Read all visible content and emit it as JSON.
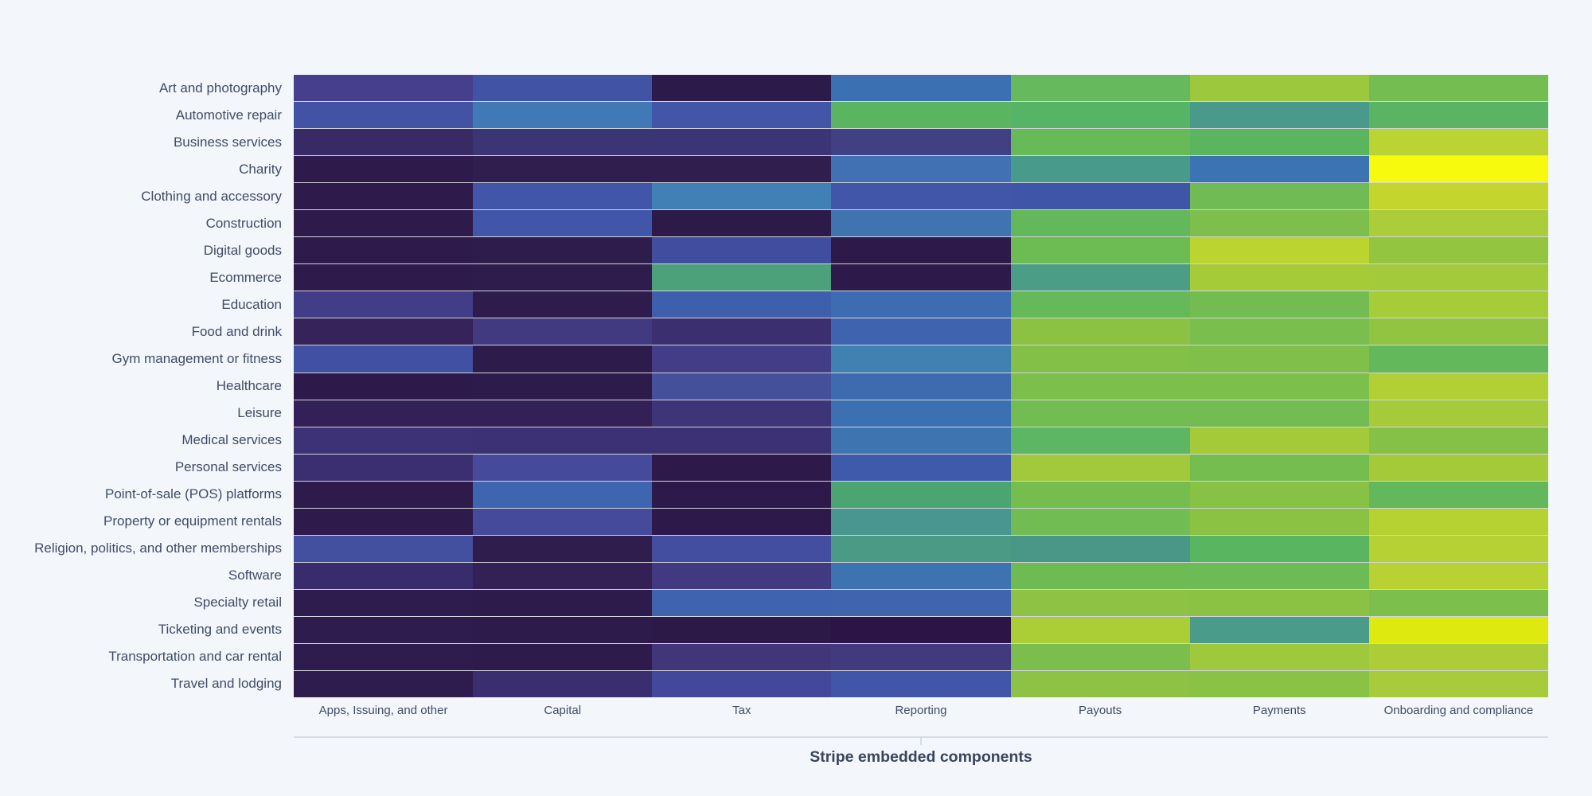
{
  "page": {
    "background": "#f3f7fb"
  },
  "colors": {
    "label_text": "#3f4c66",
    "title_text": "#3a455c",
    "axis_line": "#d7dde6",
    "row_divider": "rgba(5,5,25,0.14)"
  },
  "chart_data": {
    "type": "heatmap",
    "colormap": "viridis",
    "x_axis_title": "Stripe embedded components",
    "columns": [
      "Apps, Issuing, and other",
      "Capital",
      "Tax",
      "Reporting",
      "Payouts",
      "Payments",
      "Onboarding and compliance"
    ],
    "rows": [
      "Art and photography",
      "Automotive repair",
      "Business services",
      "Charity",
      "Clothing and accessory",
      "Construction",
      "Digital goods",
      "Ecommerce",
      "Education",
      "Food and drink",
      "Gym management or fitness",
      "Healthcare",
      "Leisure",
      "Medical services",
      "Personal services",
      "Point-of-sale (POS) platforms",
      "Property or equipment rentals",
      "Religion, politics, and other memberships",
      "Software",
      "Specialty retail",
      "Ticketing and events",
      "Transportation and car rental",
      "Travel and lodging"
    ],
    "values": [
      [
        0.19,
        0.25,
        0.03,
        0.34,
        0.66,
        0.78,
        0.7
      ],
      [
        0.24,
        0.38,
        0.26,
        0.64,
        0.64,
        0.48,
        0.63
      ],
      [
        0.09,
        0.13,
        0.13,
        0.17,
        0.67,
        0.64,
        0.84
      ],
      [
        0.03,
        0.05,
        0.05,
        0.34,
        0.48,
        0.34,
        1.0
      ],
      [
        0.03,
        0.26,
        0.39,
        0.26,
        0.25,
        0.69,
        0.87
      ],
      [
        0.03,
        0.26,
        0.02,
        0.36,
        0.65,
        0.72,
        0.8
      ],
      [
        0.03,
        0.04,
        0.22,
        0.03,
        0.69,
        0.84,
        0.75
      ],
      [
        0.03,
        0.04,
        0.55,
        0.03,
        0.52,
        0.79,
        0.78
      ],
      [
        0.17,
        0.04,
        0.29,
        0.33,
        0.66,
        0.7,
        0.79
      ],
      [
        0.07,
        0.16,
        0.11,
        0.3,
        0.75,
        0.72,
        0.75
      ],
      [
        0.23,
        0.03,
        0.17,
        0.39,
        0.73,
        0.73,
        0.65
      ],
      [
        0.03,
        0.03,
        0.22,
        0.32,
        0.72,
        0.72,
        0.81
      ],
      [
        0.06,
        0.06,
        0.14,
        0.34,
        0.7,
        0.7,
        0.79
      ],
      [
        0.13,
        0.13,
        0.13,
        0.36,
        0.65,
        0.78,
        0.74
      ],
      [
        0.12,
        0.21,
        0.02,
        0.28,
        0.78,
        0.7,
        0.78
      ],
      [
        0.03,
        0.31,
        0.02,
        0.57,
        0.7,
        0.74,
        0.65
      ],
      [
        0.03,
        0.21,
        0.02,
        0.46,
        0.7,
        0.75,
        0.82
      ],
      [
        0.23,
        0.04,
        0.23,
        0.48,
        0.47,
        0.64,
        0.82
      ],
      [
        0.1,
        0.05,
        0.17,
        0.36,
        0.69,
        0.69,
        0.82
      ],
      [
        0.04,
        0.03,
        0.3,
        0.3,
        0.75,
        0.75,
        0.72
      ],
      [
        0.04,
        0.03,
        0.02,
        0.01,
        0.79,
        0.48,
        0.93
      ],
      [
        0.04,
        0.03,
        0.14,
        0.15,
        0.72,
        0.77,
        0.8
      ],
      [
        0.04,
        0.11,
        0.2,
        0.26,
        0.75,
        0.74,
        0.78
      ]
    ],
    "cell_colors": [
      [
        "#453f8d",
        "#4053a5",
        "#2c1b4a",
        "#3b70b3",
        "#66b95c",
        "#9cc83d",
        "#74bd50"
      ],
      [
        "#4253a5",
        "#4079b5",
        "#4355a6",
        "#5bb45f",
        "#55b466",
        "#4a9a8b",
        "#5ab464"
      ],
      [
        "#382a64",
        "#3b3475",
        "#3b3475",
        "#414084",
        "#68ba58",
        "#5bb55e",
        "#bcd334"
      ],
      [
        "#2e1b4c",
        "#301e4f",
        "#301e4f",
        "#4171b2",
        "#489a8a",
        "#3b73b3",
        "#f8fa0d"
      ],
      [
        "#2e1b4c",
        "#4156a8",
        "#4080b5",
        "#4156a9",
        "#3f55a8",
        "#70bb54",
        "#c4d62e"
      ],
      [
        "#2e1b4c",
        "#4156a8",
        "#2c1a49",
        "#3f74b1",
        "#62b85a",
        "#7dbe4c",
        "#accd3a"
      ],
      [
        "#2e1b4c",
        "#2e1c4d",
        "#414d9e",
        "#2e1a4a",
        "#6cbb53",
        "#bcd42f",
        "#93c540"
      ],
      [
        "#2e1b4c",
        "#2e1c4d",
        "#4da17a",
        "#2e1a4a",
        "#4b9d85",
        "#a6cb39",
        "#a3ca3b"
      ],
      [
        "#433c86",
        "#2e1c4d",
        "#3e60ac",
        "#3e6cb2",
        "#66b958",
        "#72bc51",
        "#a7cc39"
      ],
      [
        "#352359",
        "#413a80",
        "#3b2f70",
        "#3f63ae",
        "#8cc243",
        "#7abe4d",
        "#92c441"
      ],
      [
        "#4150a2",
        "#2d1b4b",
        "#433c87",
        "#4181b2",
        "#82c048",
        "#80c04a",
        "#63b85b"
      ],
      [
        "#2e194b",
        "#2d1b4b",
        "#44509a",
        "#3e6ab0",
        "#7dbf4b",
        "#7dbf4b",
        "#b2cf35"
      ],
      [
        "#332056",
        "#332056",
        "#3e3478",
        "#3c70b3",
        "#72bc52",
        "#72bc51",
        "#a6cb3a"
      ],
      [
        "#3e3277",
        "#3d3175",
        "#3d3175",
        "#3e75b1",
        "#5db663",
        "#a5ca39",
        "#85c146"
      ],
      [
        "#3b2f72",
        "#464a9b",
        "#2d1a4a",
        "#3f5aab",
        "#a2c93b",
        "#75bd4e",
        "#a4ca3a"
      ],
      [
        "#2e1b4c",
        "#3e66b0",
        "#2d1a4a",
        "#4ca571",
        "#75bd4f",
        "#88c245",
        "#62b85b"
      ],
      [
        "#2e1b4c",
        "#454a9b",
        "#2d1a4a",
        "#499590",
        "#71bc53",
        "#8cc243",
        "#b6d132"
      ],
      [
        "#4350a0",
        "#2f1d4e",
        "#434ea0",
        "#4a9a86",
        "#4a9788",
        "#5ab560",
        "#b5d133"
      ],
      [
        "#392c6c",
        "#332155",
        "#413a83",
        "#3e73b1",
        "#6ebb54",
        "#6dbb54",
        "#b7d232"
      ],
      [
        "#2f1c4e",
        "#2d1b4b",
        "#3f63ae",
        "#4064ad",
        "#8ec244",
        "#8cc243",
        "#7cbf4c"
      ],
      [
        "#2f1c4e",
        "#2d1b4b",
        "#2d1948",
        "#2c1546",
        "#abce37",
        "#4a9b89",
        "#dde90f"
      ],
      [
        "#2f1c4e",
        "#2d1b4b",
        "#403679",
        "#413a7f",
        "#7cbe4d",
        "#9fc83c",
        "#accd37"
      ],
      [
        "#2f1c4e",
        "#3b2e6f",
        "#44489a",
        "#4156a9",
        "#8dc244",
        "#89c245",
        "#a7cb3a"
      ]
    ]
  }
}
